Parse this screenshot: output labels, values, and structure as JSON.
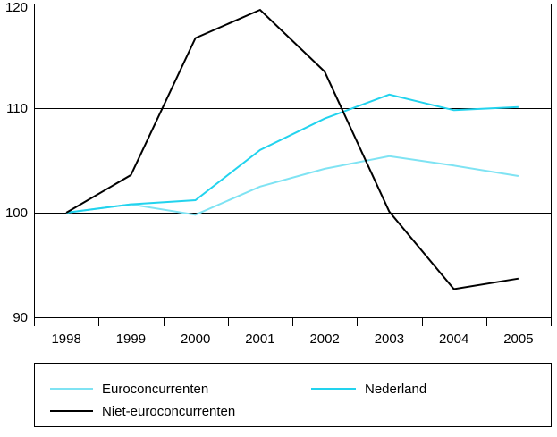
{
  "chart_data": {
    "type": "line",
    "categories": [
      "1998",
      "1999",
      "2000",
      "2001",
      "2002",
      "2003",
      "2004",
      "2005"
    ],
    "yticks": [
      "90",
      "100",
      "110",
      "120"
    ],
    "ylim": [
      90,
      120
    ],
    "grid": "horizontal",
    "legend_position": "bottom",
    "series": [
      {
        "name": "Euroconcurrenten",
        "color": "#7fe3f3",
        "values": [
          100,
          100.8,
          99.8,
          102.5,
          104.2,
          105.4,
          104.5,
          103.5
        ]
      },
      {
        "name": "Nederland",
        "color": "#22d3ee",
        "values": [
          100,
          100.8,
          101.2,
          106.0,
          109.0,
          111.3,
          109.8,
          110.1
        ]
      },
      {
        "name": "Niet-euroconcurrenten",
        "color": "#000000",
        "values": [
          100,
          103.6,
          116.7,
          119.4,
          113.5,
          100.1,
          92.7,
          93.7
        ]
      }
    ]
  }
}
